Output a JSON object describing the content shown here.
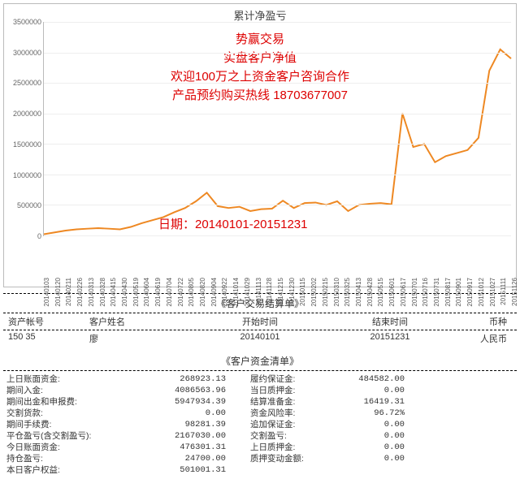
{
  "chart": {
    "title": "累计净盈亏",
    "type": "line",
    "line_color": "#ee8822",
    "line_width": 2,
    "background_color": "#ffffff",
    "grid_color": "#eeeeee",
    "axis_color": "#bbbbbb",
    "ylim": [
      0,
      3500000
    ],
    "yticks": [
      0,
      500000,
      1000000,
      1500000,
      2000000,
      2500000,
      3000000,
      3500000
    ],
    "xticks": [
      "20140103",
      "20140120",
      "20140211",
      "20140226",
      "20140313",
      "20140328",
      "20140415",
      "20140430",
      "20140519",
      "20140604",
      "20140619",
      "20140704",
      "20140722",
      "20140805",
      "20140820",
      "20140904",
      "20140922",
      "20141014",
      "20141029",
      "20141113",
      "20141128",
      "20141215",
      "20141230",
      "20150115",
      "20150202",
      "20150215",
      "20150310",
      "20150325",
      "20150413",
      "20150428",
      "20150515",
      "20150601",
      "20150617",
      "20150701",
      "20150716",
      "20150731",
      "20150817",
      "20150901",
      "20150917",
      "20151012",
      "20151027",
      "20151111",
      "20151126"
    ],
    "series": [
      20000,
      50000,
      80000,
      100000,
      110000,
      120000,
      110000,
      100000,
      140000,
      200000,
      250000,
      300000,
      380000,
      450000,
      560000,
      700000,
      480000,
      450000,
      470000,
      400000,
      430000,
      440000,
      570000,
      450000,
      530000,
      540000,
      500000,
      560000,
      400000,
      500000,
      520000,
      530000,
      510000,
      2000000,
      1450000,
      1500000,
      1200000,
      1300000,
      1350000,
      1400000,
      1600000,
      2700000,
      3050000,
      2900000
    ],
    "overlay": {
      "color": "#dd0000",
      "font_size": 15,
      "line1": "势赢交易",
      "line2": "实盘客户净值",
      "line3": "欢迎100万之上资金客户咨询合作",
      "line4": "产品预约购买热线 18703677007",
      "date_label": "日期：20140101-20151231"
    }
  },
  "settlement": {
    "title": "《客户交易结算单》",
    "headers": {
      "acct": "资产帐号",
      "name": "客户姓名",
      "start": "开始时间",
      "end": "结束时间",
      "ccy": "币种"
    },
    "values": {
      "acct": "150    35",
      "name": "廖",
      "start": "20140101",
      "end": "20151231",
      "ccy": "人民币"
    }
  },
  "fundlist": {
    "title": "《客户资金清单》",
    "left": [
      {
        "label": "上日账面资金:",
        "value": "268923.13"
      },
      {
        "label": "期间入金:",
        "value": "4086563.96"
      },
      {
        "label": "期间出金和申报费:",
        "value": "5947934.39"
      },
      {
        "label": "交割货款:",
        "value": "0.00"
      },
      {
        "label": "期间手续费:",
        "value": "98281.39"
      },
      {
        "label": "平仓盈亏(含交割盈亏):",
        "value": "2167030.00"
      },
      {
        "label": "今日账面资金:",
        "value": "476301.31"
      },
      {
        "label": "持仓盈亏:",
        "value": "24700.00"
      },
      {
        "label": "本日客户权益:",
        "value": "501001.31"
      }
    ],
    "right": [
      {
        "label": "履约保证金:",
        "value": "484582.00"
      },
      {
        "label": "当日质押金:",
        "value": "0.00"
      },
      {
        "label": "结算准备金:",
        "value": "16419.31"
      },
      {
        "label": "资金风险率:",
        "value": "96.72%"
      },
      {
        "label": "追加保证金:",
        "value": "0.00"
      },
      {
        "label": "交割盈亏:",
        "value": "0.00"
      },
      {
        "label": "上日质押金:",
        "value": "0.00"
      },
      {
        "label": "质押变动金额:",
        "value": "0.00"
      }
    ]
  }
}
